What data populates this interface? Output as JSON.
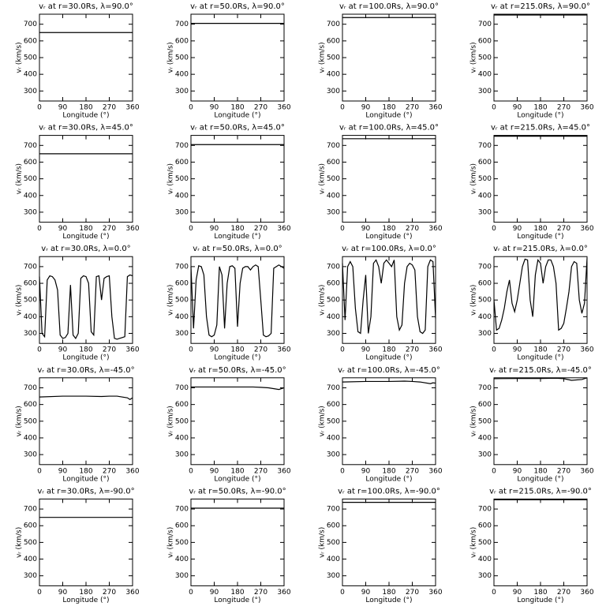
{
  "chart_data": [
    {
      "type": "line",
      "title": "vᵣ at r=30.0Rs, λ=90.0°",
      "xlabel": "Longitude (°)",
      "ylabel": "vᵣ (km/s)",
      "x": [
        0,
        360
      ],
      "values": [
        650,
        650
      ],
      "color": "#000000",
      "xlim": [
        0,
        360
      ],
      "xticks": [
        0,
        90,
        180,
        270,
        360
      ],
      "ylim": [
        240,
        760
      ],
      "yticks": [
        300,
        400,
        500,
        600,
        700
      ]
    },
    {
      "type": "line",
      "title": "vᵣ at r=50.0Rs, λ=90.0°",
      "xlabel": "Longitude (°)",
      "ylabel": "vᵣ (km/s)",
      "x": [
        0,
        360
      ],
      "values": [
        705,
        705
      ],
      "color": "#000000",
      "xlim": [
        0,
        360
      ],
      "xticks": [
        0,
        90,
        180,
        270,
        360
      ],
      "ylim": [
        240,
        760
      ],
      "yticks": [
        300,
        400,
        500,
        600,
        700
      ]
    },
    {
      "type": "line",
      "title": "vᵣ at r=100.0Rs, λ=90.0°",
      "xlabel": "Longitude (°)",
      "ylabel": "vᵣ (km/s)",
      "x": [
        0,
        360
      ],
      "values": [
        740,
        740
      ],
      "color": "#000000",
      "xlim": [
        0,
        360
      ],
      "xticks": [
        0,
        90,
        180,
        270,
        360
      ],
      "ylim": [
        240,
        760
      ],
      "yticks": [
        300,
        400,
        500,
        600,
        700
      ]
    },
    {
      "type": "line",
      "title": "vᵣ at r=215.0Rs, λ=90.0°",
      "xlabel": "Longitude (°)",
      "ylabel": "vᵣ (km/s)",
      "x": [
        0,
        360
      ],
      "values": [
        755,
        755
      ],
      "color": "#000000",
      "xlim": [
        0,
        360
      ],
      "xticks": [
        0,
        90,
        180,
        270,
        360
      ],
      "ylim": [
        240,
        760
      ],
      "yticks": [
        300,
        400,
        500,
        600,
        700
      ]
    },
    {
      "type": "line",
      "title": "vᵣ at r=30.0Rs, λ=45.0°",
      "xlabel": "Longitude (°)",
      "ylabel": "vᵣ (km/s)",
      "x": [
        0,
        360
      ],
      "values": [
        650,
        650
      ],
      "color": "#000000",
      "xlim": [
        0,
        360
      ],
      "xticks": [
        0,
        90,
        180,
        270,
        360
      ],
      "ylim": [
        240,
        760
      ],
      "yticks": [
        300,
        400,
        500,
        600,
        700
      ]
    },
    {
      "type": "line",
      "title": "vᵣ at r=50.0Rs, λ=45.0°",
      "xlabel": "Longitude (°)",
      "ylabel": "vᵣ (km/s)",
      "x": [
        0,
        360
      ],
      "values": [
        705,
        705
      ],
      "color": "#000000",
      "xlim": [
        0,
        360
      ],
      "xticks": [
        0,
        90,
        180,
        270,
        360
      ],
      "ylim": [
        240,
        760
      ],
      "yticks": [
        300,
        400,
        500,
        600,
        700
      ]
    },
    {
      "type": "line",
      "title": "vᵣ at r=100.0Rs, λ=45.0°",
      "xlabel": "Longitude (°)",
      "ylabel": "vᵣ (km/s)",
      "x": [
        0,
        360
      ],
      "values": [
        740,
        740
      ],
      "color": "#000000",
      "xlim": [
        0,
        360
      ],
      "xticks": [
        0,
        90,
        180,
        270,
        360
      ],
      "ylim": [
        240,
        760
      ],
      "yticks": [
        300,
        400,
        500,
        600,
        700
      ]
    },
    {
      "type": "line",
      "title": "vᵣ at r=215.0Rs, λ=45.0°",
      "xlabel": "Longitude (°)",
      "ylabel": "vᵣ (km/s)",
      "x": [
        0,
        360
      ],
      "values": [
        755,
        755
      ],
      "color": "#000000",
      "xlim": [
        0,
        360
      ],
      "xticks": [
        0,
        90,
        180,
        270,
        360
      ],
      "ylim": [
        240,
        760
      ],
      "yticks": [
        300,
        400,
        500,
        600,
        700
      ]
    },
    {
      "type": "line",
      "title": "vᵣ at r=30.0Rs, λ=0.0°",
      "xlabel": "Longitude (°)",
      "ylabel": "vᵣ (km/s)",
      "x": [
        0,
        10,
        20,
        30,
        40,
        50,
        60,
        70,
        80,
        90,
        100,
        110,
        120,
        130,
        140,
        150,
        160,
        170,
        180,
        190,
        200,
        210,
        220,
        230,
        240,
        250,
        260,
        270,
        280,
        290,
        300,
        310,
        320,
        330,
        340,
        350,
        360
      ],
      "values": [
        640,
        300,
        280,
        620,
        645,
        640,
        620,
        560,
        290,
        270,
        275,
        300,
        590,
        290,
        270,
        300,
        630,
        645,
        640,
        600,
        310,
        290,
        640,
        645,
        500,
        630,
        640,
        645,
        400,
        270,
        265,
        270,
        275,
        280,
        640,
        650,
        645
      ],
      "color": "#000000",
      "xlim": [
        0,
        360
      ],
      "xticks": [
        0,
        90,
        180,
        270,
        360
      ],
      "ylim": [
        240,
        760
      ],
      "yticks": [
        300,
        400,
        500,
        600,
        700
      ]
    },
    {
      "type": "line",
      "title": "vᵣ at r=50.0Rs, λ=0.0°",
      "xlabel": "Longitude (°)",
      "ylabel": "vᵣ (km/s)",
      "x": [
        0,
        10,
        20,
        30,
        40,
        50,
        60,
        70,
        80,
        90,
        100,
        110,
        120,
        130,
        140,
        150,
        160,
        170,
        180,
        190,
        200,
        210,
        220,
        230,
        240,
        250,
        260,
        270,
        280,
        290,
        300,
        310,
        320,
        330,
        340,
        350,
        360
      ],
      "values": [
        700,
        330,
        620,
        705,
        700,
        650,
        400,
        290,
        280,
        290,
        350,
        700,
        650,
        330,
        600,
        700,
        705,
        690,
        340,
        600,
        690,
        700,
        700,
        680,
        700,
        710,
        700,
        500,
        290,
        280,
        285,
        300,
        690,
        700,
        710,
        700,
        690
      ],
      "color": "#000000",
      "xlim": [
        0,
        360
      ],
      "xticks": [
        0,
        90,
        180,
        270,
        360
      ],
      "ylim": [
        240,
        760
      ],
      "yticks": [
        300,
        400,
        500,
        600,
        700
      ]
    },
    {
      "type": "line",
      "title": "vᵣ at r=100.0Rs, λ=0.0°",
      "xlabel": "Longitude (°)",
      "ylabel": "vᵣ (km/s)",
      "x": [
        0,
        10,
        20,
        30,
        40,
        50,
        60,
        70,
        80,
        90,
        100,
        110,
        120,
        130,
        140,
        150,
        160,
        170,
        180,
        190,
        200,
        210,
        220,
        230,
        240,
        250,
        260,
        270,
        280,
        290,
        300,
        310,
        320,
        330,
        340,
        350,
        360
      ],
      "values": [
        720,
        380,
        700,
        730,
        700,
        450,
        310,
        300,
        500,
        650,
        300,
        400,
        720,
        740,
        700,
        600,
        720,
        740,
        720,
        700,
        740,
        400,
        320,
        350,
        600,
        700,
        720,
        710,
        680,
        400,
        310,
        300,
        320,
        700,
        740,
        730,
        390
      ],
      "color": "#000000",
      "xlim": [
        0,
        360
      ],
      "xticks": [
        0,
        90,
        180,
        270,
        360
      ],
      "ylim": [
        240,
        760
      ],
      "yticks": [
        300,
        400,
        500,
        600,
        700
      ]
    },
    {
      "type": "line",
      "title": "vᵣ at r=215.0Rs, λ=0.0°",
      "xlabel": "Longitude (°)",
      "ylabel": "vᵣ (km/s)",
      "x": [
        0,
        10,
        20,
        30,
        40,
        50,
        60,
        70,
        80,
        90,
        100,
        110,
        120,
        130,
        140,
        150,
        160,
        170,
        180,
        190,
        200,
        210,
        220,
        230,
        240,
        250,
        260,
        270,
        280,
        290,
        300,
        310,
        320,
        330,
        340,
        350,
        360
      ],
      "values": [
        500,
        320,
        330,
        380,
        450,
        550,
        620,
        480,
        430,
        500,
        600,
        700,
        745,
        740,
        500,
        400,
        650,
        740,
        720,
        600,
        700,
        740,
        740,
        700,
        600,
        320,
        330,
        360,
        450,
        550,
        700,
        730,
        720,
        500,
        420,
        480,
        750
      ],
      "color": "#000000",
      "xlim": [
        0,
        360
      ],
      "xticks": [
        0,
        90,
        180,
        270,
        360
      ],
      "ylim": [
        240,
        760
      ],
      "yticks": [
        300,
        400,
        500,
        600,
        700
      ]
    },
    {
      "type": "line",
      "title": "vᵣ at r=30.0Rs, λ=-45.0°",
      "xlabel": "Longitude (°)",
      "ylabel": "vᵣ (km/s)",
      "x": [
        0,
        90,
        180,
        240,
        270,
        300,
        340,
        350,
        360
      ],
      "values": [
        645,
        650,
        650,
        648,
        650,
        650,
        640,
        630,
        640
      ],
      "color": "#000000",
      "xlim": [
        0,
        360
      ],
      "xticks": [
        0,
        90,
        180,
        270,
        360
      ],
      "ylim": [
        240,
        760
      ],
      "yticks": [
        300,
        400,
        500,
        600,
        700
      ]
    },
    {
      "type": "line",
      "title": "vᵣ at r=50.0Rs, λ=-45.0°",
      "xlabel": "Longitude (°)",
      "ylabel": "vᵣ (km/s)",
      "x": [
        0,
        90,
        180,
        240,
        270,
        300,
        340,
        350,
        360
      ],
      "values": [
        705,
        705,
        705,
        705,
        703,
        700,
        690,
        695,
        700
      ],
      "color": "#000000",
      "xlim": [
        0,
        360
      ],
      "xticks": [
        0,
        90,
        180,
        270,
        360
      ],
      "ylim": [
        240,
        760
      ],
      "yticks": [
        300,
        400,
        500,
        600,
        700
      ]
    },
    {
      "type": "line",
      "title": "vᵣ at r=100.0Rs, λ=-45.0°",
      "xlabel": "Longitude (°)",
      "ylabel": "vᵣ (km/s)",
      "x": [
        0,
        90,
        180,
        240,
        270,
        300,
        340,
        350,
        360
      ],
      "values": [
        735,
        738,
        738,
        740,
        738,
        735,
        725,
        730,
        728
      ],
      "color": "#000000",
      "xlim": [
        0,
        360
      ],
      "xticks": [
        0,
        90,
        180,
        270,
        360
      ],
      "ylim": [
        240,
        760
      ],
      "yticks": [
        300,
        400,
        500,
        600,
        700
      ]
    },
    {
      "type": "line",
      "title": "vᵣ at r=215.0Rs, λ=-45.0°",
      "xlabel": "Longitude (°)",
      "ylabel": "vᵣ (km/s)",
      "x": [
        0,
        90,
        180,
        240,
        270,
        300,
        340,
        350,
        360
      ],
      "values": [
        755,
        756,
        756,
        758,
        755,
        745,
        750,
        755,
        760
      ],
      "color": "#000000",
      "xlim": [
        0,
        360
      ],
      "xticks": [
        0,
        90,
        180,
        270,
        360
      ],
      "ylim": [
        240,
        760
      ],
      "yticks": [
        300,
        400,
        500,
        600,
        700
      ]
    },
    {
      "type": "line",
      "title": "vᵣ at r=30.0Rs, λ=-90.0°",
      "xlabel": "Longitude (°)",
      "ylabel": "vᵣ (km/s)",
      "x": [
        0,
        360
      ],
      "values": [
        650,
        650
      ],
      "color": "#000000",
      "xlim": [
        0,
        360
      ],
      "xticks": [
        0,
        90,
        180,
        270,
        360
      ],
      "ylim": [
        240,
        760
      ],
      "yticks": [
        300,
        400,
        500,
        600,
        700
      ]
    },
    {
      "type": "line",
      "title": "vᵣ at r=50.0Rs, λ=-90.0°",
      "xlabel": "Longitude (°)",
      "ylabel": "vᵣ (km/s)",
      "x": [
        0,
        360
      ],
      "values": [
        705,
        705
      ],
      "color": "#000000",
      "xlim": [
        0,
        360
      ],
      "xticks": [
        0,
        90,
        180,
        270,
        360
      ],
      "ylim": [
        240,
        760
      ],
      "yticks": [
        300,
        400,
        500,
        600,
        700
      ]
    },
    {
      "type": "line",
      "title": "vᵣ at r=100.0Rs, λ=-90.0°",
      "xlabel": "Longitude (°)",
      "ylabel": "vᵣ (km/s)",
      "x": [
        0,
        360
      ],
      "values": [
        740,
        740
      ],
      "color": "#000000",
      "xlim": [
        0,
        360
      ],
      "xticks": [
        0,
        90,
        180,
        270,
        360
      ],
      "ylim": [
        240,
        760
      ],
      "yticks": [
        300,
        400,
        500,
        600,
        700
      ]
    },
    {
      "type": "line",
      "title": "vᵣ at r=215.0Rs, λ=-90.0°",
      "xlabel": "Longitude (°)",
      "ylabel": "vᵣ (km/s)",
      "x": [
        0,
        360
      ],
      "values": [
        755,
        755
      ],
      "color": "#000000",
      "xlim": [
        0,
        360
      ],
      "xticks": [
        0,
        90,
        180,
        270,
        360
      ],
      "ylim": [
        240,
        760
      ],
      "yticks": [
        300,
        400,
        500,
        600,
        700
      ]
    }
  ]
}
